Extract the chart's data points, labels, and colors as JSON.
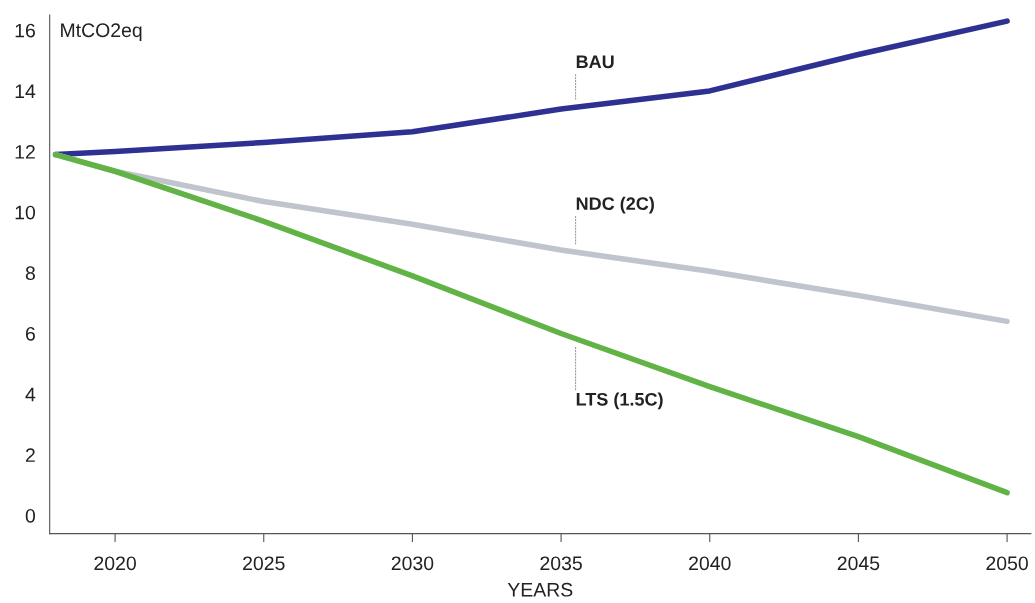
{
  "chart_data": {
    "type": "line",
    "xlabel": "YEARS",
    "ylabel": "MtCO2eq",
    "x": [
      2018,
      2020,
      2025,
      2030,
      2035,
      2040,
      2045,
      2050
    ],
    "series": [
      {
        "name": "BAU",
        "color": "#2e3192",
        "values": [
          11.9,
          12.0,
          12.3,
          12.65,
          13.4,
          14.0,
          15.2,
          16.3
        ]
      },
      {
        "name": "NDC (2C)",
        "color": "#c0c4cc",
        "values": [
          11.9,
          11.35,
          10.35,
          9.6,
          8.75,
          8.05,
          7.25,
          6.4
        ]
      },
      {
        "name": "LTS (1.5C)",
        "color": "#62b346",
        "values": [
          11.9,
          11.35,
          9.7,
          7.9,
          6.0,
          4.25,
          2.6,
          0.75
        ]
      }
    ],
    "xlim": [
      2017.8,
      2050.8
    ],
    "xticks": [
      2020,
      2025,
      2030,
      2035,
      2040,
      2045,
      2050
    ],
    "ylim": [
      -0.6,
      16.5
    ],
    "yticks": [
      0,
      2,
      4,
      6,
      8,
      10,
      12,
      14,
      16
    ],
    "grid": false,
    "legend": false,
    "marker": "none",
    "line_style": "solid"
  }
}
